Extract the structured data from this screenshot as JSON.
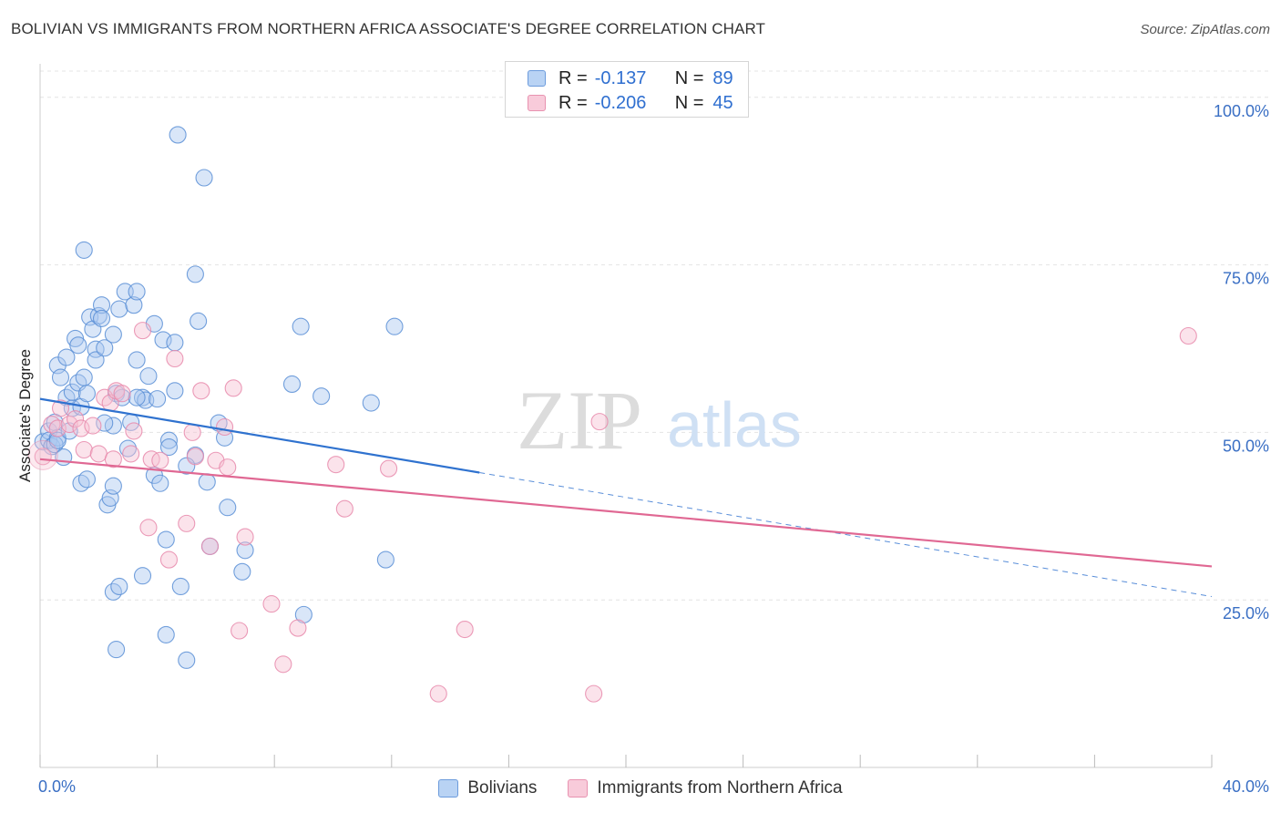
{
  "title": "BOLIVIAN VS IMMIGRANTS FROM NORTHERN AFRICA ASSOCIATE'S DEGREE CORRELATION CHART",
  "source": "Source: ZipAtlas.com",
  "watermark": {
    "zip": "ZIP",
    "atlas": "atlas"
  },
  "legend": {
    "rows": [
      {
        "r_label": "R =",
        "r_value": "-0.137",
        "n_label": "N =",
        "n_value": "89"
      },
      {
        "r_label": "R =",
        "r_value": "-0.206",
        "n_label": "N =",
        "n_value": "45"
      }
    ]
  },
  "colors": {
    "bolivians_fill": "#aac8f0",
    "bolivians_stroke": "#5b8fd6",
    "bolivians_line": "#2f72cf",
    "nafrica_fill": "#f6c0d2",
    "nafrica_stroke": "#e88aab",
    "nafrica_line": "#e06893",
    "tick_label": "#3a6fc4"
  },
  "chart_data": {
    "type": "scatter",
    "title": "BOLIVIAN VS IMMIGRANTS FROM NORTHERN AFRICA ASSOCIATE'S DEGREE CORRELATION CHART",
    "xlabel": "",
    "ylabel": "Associate's Degree",
    "xlim": [
      0,
      40
    ],
    "ylim": [
      0,
      105
    ],
    "x_tick_labels": [
      "0.0%",
      "40.0%"
    ],
    "y_ticks": [
      25,
      50,
      75,
      100
    ],
    "y_tick_labels": [
      "25.0%",
      "50.0%",
      "75.0%",
      "100.0%"
    ],
    "grid": true,
    "legend_position": "bottom",
    "series": [
      {
        "name": "Bolivians",
        "r": -0.137,
        "n": 89,
        "trend": {
          "x0": 0,
          "y0": 55,
          "x1": 15,
          "y1": 44,
          "dashed_to_x": 40,
          "dashed_to_y": 25.5
        },
        "points": [
          [
            0.1,
            48.6
          ],
          [
            0.3,
            50.2
          ],
          [
            0.3,
            48.8
          ],
          [
            0.4,
            47.9
          ],
          [
            0.5,
            51.5
          ],
          [
            0.6,
            49.2
          ],
          [
            0.5,
            48.2
          ],
          [
            0.6,
            48.8
          ],
          [
            0.6,
            60.0
          ],
          [
            0.7,
            58.2
          ],
          [
            0.8,
            46.3
          ],
          [
            0.9,
            55.2
          ],
          [
            0.9,
            61.2
          ],
          [
            1.0,
            50.2
          ],
          [
            1.1,
            53.6
          ],
          [
            1.1,
            56.0
          ],
          [
            1.2,
            64.0
          ],
          [
            1.3,
            63.0
          ],
          [
            1.3,
            57.4
          ],
          [
            1.4,
            53.8
          ],
          [
            1.4,
            42.4
          ],
          [
            1.5,
            77.2
          ],
          [
            1.6,
            55.8
          ],
          [
            1.6,
            43.0
          ],
          [
            1.7,
            67.2
          ],
          [
            1.8,
            65.4
          ],
          [
            1.9,
            62.4
          ],
          [
            1.9,
            60.8
          ],
          [
            2.0,
            67.4
          ],
          [
            2.1,
            69.0
          ],
          [
            2.2,
            62.6
          ],
          [
            2.1,
            67.0
          ],
          [
            2.3,
            39.2
          ],
          [
            2.4,
            40.2
          ],
          [
            2.5,
            64.6
          ],
          [
            2.5,
            51.0
          ],
          [
            2.6,
            55.8
          ],
          [
            2.7,
            68.4
          ],
          [
            2.8,
            55.2
          ],
          [
            2.9,
            71.0
          ],
          [
            3.1,
            51.5
          ],
          [
            3.2,
            69.0
          ],
          [
            3.3,
            71.0
          ],
          [
            3.3,
            60.8
          ],
          [
            3.5,
            55.2
          ],
          [
            3.5,
            28.6
          ],
          [
            3.6,
            54.8
          ],
          [
            3.7,
            58.4
          ],
          [
            3.9,
            43.6
          ],
          [
            4.0,
            55.0
          ],
          [
            3.9,
            66.2
          ],
          [
            4.2,
            63.8
          ],
          [
            4.1,
            42.4
          ],
          [
            4.4,
            48.8
          ],
          [
            4.4,
            47.8
          ],
          [
            4.3,
            34.0
          ],
          [
            4.6,
            56.2
          ],
          [
            4.6,
            63.4
          ],
          [
            4.7,
            94.4
          ],
          [
            4.8,
            27.0
          ],
          [
            5.0,
            16.0
          ],
          [
            5.3,
            73.6
          ],
          [
            5.3,
            46.6
          ],
          [
            5.4,
            66.6
          ],
          [
            5.6,
            88.0
          ],
          [
            5.7,
            42.6
          ],
          [
            5.8,
            33.0
          ],
          [
            6.1,
            51.4
          ],
          [
            6.3,
            49.2
          ],
          [
            6.4,
            38.8
          ],
          [
            6.9,
            29.2
          ],
          [
            7.0,
            32.4
          ],
          [
            8.6,
            57.2
          ],
          [
            8.9,
            65.8
          ],
          [
            9.0,
            22.8
          ],
          [
            9.6,
            55.4
          ],
          [
            11.3,
            54.4
          ],
          [
            11.8,
            31.0
          ],
          [
            12.1,
            65.8
          ],
          [
            2.5,
            26.2
          ],
          [
            2.7,
            27.0
          ],
          [
            2.6,
            17.6
          ],
          [
            3.3,
            55.2
          ],
          [
            4.3,
            19.8
          ],
          [
            2.5,
            42.0
          ],
          [
            2.2,
            51.4
          ],
          [
            1.5,
            58.2
          ],
          [
            3.0,
            47.6
          ],
          [
            5.0,
            45.0
          ]
        ]
      },
      {
        "name": "Immigrants from Northern Africa",
        "r": -0.206,
        "n": 45,
        "trend": {
          "x0": 0,
          "y0": 46,
          "x1": 40,
          "y1": 30
        },
        "points": [
          [
            0.1,
            46.4
          ],
          [
            0.4,
            51.2
          ],
          [
            0.6,
            50.6
          ],
          [
            0.7,
            53.6
          ],
          [
            1.0,
            51.2
          ],
          [
            1.2,
            52.0
          ],
          [
            1.4,
            50.6
          ],
          [
            1.5,
            47.4
          ],
          [
            1.8,
            51.0
          ],
          [
            2.0,
            46.8
          ],
          [
            2.2,
            55.2
          ],
          [
            2.4,
            54.4
          ],
          [
            2.5,
            46.0
          ],
          [
            2.6,
            56.2
          ],
          [
            2.8,
            55.8
          ],
          [
            3.1,
            46.8
          ],
          [
            3.2,
            50.2
          ],
          [
            3.5,
            65.2
          ],
          [
            3.7,
            35.8
          ],
          [
            3.8,
            46.0
          ],
          [
            4.1,
            45.8
          ],
          [
            4.4,
            31.0
          ],
          [
            4.6,
            61.0
          ],
          [
            5.0,
            36.4
          ],
          [
            5.2,
            50.0
          ],
          [
            5.3,
            46.4
          ],
          [
            5.5,
            56.2
          ],
          [
            5.8,
            33.0
          ],
          [
            6.0,
            45.8
          ],
          [
            6.3,
            50.8
          ],
          [
            6.4,
            44.8
          ],
          [
            6.6,
            56.6
          ],
          [
            6.8,
            20.4
          ],
          [
            7.0,
            34.4
          ],
          [
            7.9,
            24.4
          ],
          [
            8.3,
            15.4
          ],
          [
            8.8,
            20.8
          ],
          [
            10.1,
            45.2
          ],
          [
            10.4,
            38.6
          ],
          [
            11.9,
            44.6
          ],
          [
            13.6,
            11.0
          ],
          [
            14.5,
            20.6
          ],
          [
            19.1,
            51.6
          ],
          [
            18.9,
            11.0
          ],
          [
            39.2,
            64.4
          ]
        ]
      }
    ]
  },
  "bottom_legend": {
    "items": [
      {
        "label": "Bolivians"
      },
      {
        "label": "Immigrants from Northern Africa"
      }
    ]
  }
}
